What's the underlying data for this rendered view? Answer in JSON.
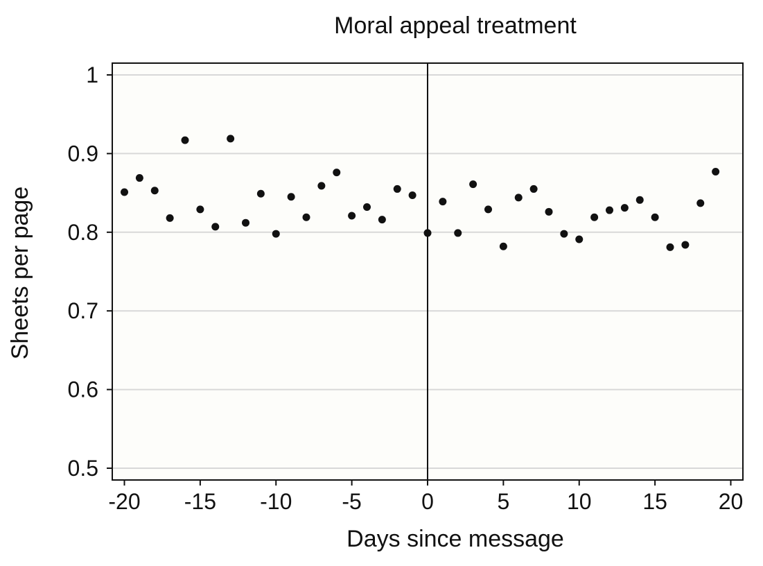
{
  "colors": {
    "plot_background": "#fdfdfa",
    "gridline": "#d8d8d8",
    "points": "#111111",
    "axis": "#111111"
  },
  "chart_data": {
    "type": "scatter",
    "title": "Moral appeal treatment",
    "xlabel": "Days since message",
    "ylabel": "Sheets per page",
    "xlim": [
      -20.8,
      20.8
    ],
    "ylim": [
      0.485,
      1.015
    ],
    "x_ticks": [
      -20,
      -15,
      -10,
      -5,
      0,
      5,
      10,
      15,
      20
    ],
    "x_tick_labels": [
      "-20",
      "-15",
      "-10",
      "-5",
      "0",
      "5",
      "10",
      "15",
      "20"
    ],
    "y_ticks": [
      0.5,
      0.6,
      0.7,
      0.8,
      0.9,
      1.0
    ],
    "y_tick_labels": [
      "0.5",
      "0.6",
      "0.7",
      "0.8",
      "0.9",
      "1"
    ],
    "grid": "horizontal",
    "reference_line_x": 0,
    "points": [
      {
        "x": -20,
        "y": 0.851
      },
      {
        "x": -19,
        "y": 0.869
      },
      {
        "x": -18,
        "y": 0.853
      },
      {
        "x": -17,
        "y": 0.818
      },
      {
        "x": -16,
        "y": 0.917
      },
      {
        "x": -15,
        "y": 0.829
      },
      {
        "x": -14,
        "y": 0.807
      },
      {
        "x": -13,
        "y": 0.919
      },
      {
        "x": -12,
        "y": 0.812
      },
      {
        "x": -11,
        "y": 0.849
      },
      {
        "x": -10,
        "y": 0.798
      },
      {
        "x": -9,
        "y": 0.845
      },
      {
        "x": -8,
        "y": 0.819
      },
      {
        "x": -7,
        "y": 0.859
      },
      {
        "x": -6,
        "y": 0.876
      },
      {
        "x": -5,
        "y": 0.821
      },
      {
        "x": -4,
        "y": 0.832
      },
      {
        "x": -3,
        "y": 0.816
      },
      {
        "x": -2,
        "y": 0.855
      },
      {
        "x": -1,
        "y": 0.847
      },
      {
        "x": 0,
        "y": 0.799
      },
      {
        "x": 1,
        "y": 0.839
      },
      {
        "x": 2,
        "y": 0.799
      },
      {
        "x": 3,
        "y": 0.861
      },
      {
        "x": 4,
        "y": 0.829
      },
      {
        "x": 5,
        "y": 0.782
      },
      {
        "x": 6,
        "y": 0.844
      },
      {
        "x": 7,
        "y": 0.855
      },
      {
        "x": 8,
        "y": 0.826
      },
      {
        "x": 9,
        "y": 0.798
      },
      {
        "x": 10,
        "y": 0.791
      },
      {
        "x": 11,
        "y": 0.819
      },
      {
        "x": 12,
        "y": 0.828
      },
      {
        "x": 13,
        "y": 0.831
      },
      {
        "x": 14,
        "y": 0.841
      },
      {
        "x": 15,
        "y": 0.819
      },
      {
        "x": 16,
        "y": 0.781
      },
      {
        "x": 17,
        "y": 0.784
      },
      {
        "x": 18,
        "y": 0.837
      },
      {
        "x": 19,
        "y": 0.877
      }
    ]
  }
}
